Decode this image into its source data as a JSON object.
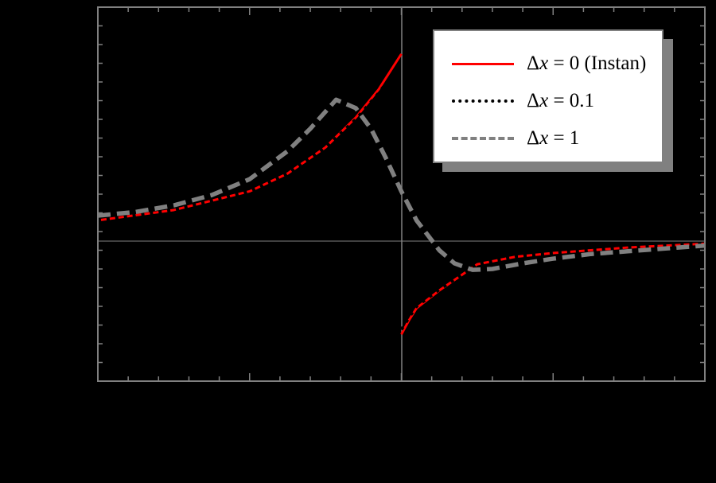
{
  "chart_data": {
    "type": "line",
    "title": "",
    "xlabel": "",
    "ylabel": "",
    "xlim": [
      -2,
      2
    ],
    "ylim": [
      -1.5,
      2.5
    ],
    "grid": false,
    "background": "#000000",
    "axis_color": "#808080",
    "x_major_ticks": [
      -2,
      -1,
      0,
      1,
      2
    ],
    "x_minor_tick_step": 0.2,
    "y_major_ticks": [
      -1,
      0,
      1,
      2
    ],
    "y_minor_tick_step": 0.2,
    "tick_labels_visible": false,
    "reference_lines": {
      "x": 0,
      "y": 0
    },
    "legend_position": "upper right",
    "series": [
      {
        "name": "Δx = 0 (Instan)",
        "color": "#ff0000",
        "style": "solid",
        "segments": [
          {
            "x": [
              -2,
              -1.5,
              -1,
              -0.75,
              -0.5,
              -0.3,
              -0.15,
              0
            ],
            "y": [
              0.22,
              0.33,
              0.53,
              0.72,
              1.0,
              1.32,
              1.62,
              2.0
            ]
          },
          {
            "x": [
              0,
              0.05,
              0.1,
              0.25,
              0.5,
              0.75,
              1,
              1.5,
              2
            ],
            "y": [
              -1.0,
              -0.85,
              -0.72,
              -0.53,
              -0.25,
              -0.17,
              -0.13,
              -0.07,
              -0.03
            ]
          }
        ]
      },
      {
        "name": "Δx = 0.1",
        "color": "#000000",
        "style": "dotted",
        "segments": [
          {
            "x": [
              -2,
              -1.5,
              -1,
              -0.75,
              -0.5,
              -0.3,
              -0.15,
              0
            ],
            "y": [
              0.22,
              0.33,
              0.53,
              0.72,
              1.0,
              1.3,
              1.58,
              1.9
            ]
          },
          {
            "x": [
              0,
              0.05,
              0.1,
              0.25,
              0.5,
              0.75,
              1,
              1.5,
              2
            ],
            "y": [
              -0.95,
              -0.82,
              -0.7,
              -0.52,
              -0.25,
              -0.17,
              -0.13,
              -0.07,
              -0.03
            ]
          }
        ]
      },
      {
        "name": "Δx = 1",
        "color": "#808080",
        "style": "dashed",
        "segments": [
          {
            "x": [
              -2,
              -1.75,
              -1.5,
              -1.25,
              -1,
              -0.75,
              -0.6,
              -0.43,
              -0.3,
              -0.2,
              -0.1,
              0,
              0.1,
              0.25,
              0.35,
              0.47,
              0.6,
              0.8,
              1,
              1.25,
              1.5,
              1.75,
              2
            ],
            "y": [
              0.27,
              0.31,
              0.38,
              0.49,
              0.66,
              0.96,
              1.2,
              1.51,
              1.42,
              1.2,
              0.88,
              0.53,
              0.22,
              -0.1,
              -0.24,
              -0.31,
              -0.3,
              -0.24,
              -0.19,
              -0.14,
              -0.11,
              -0.08,
              -0.05
            ]
          }
        ]
      }
    ]
  },
  "legend": {
    "items": [
      {
        "symbol": "Δ",
        "var": "x",
        "rest": " = 0 (Instan)",
        "color": "#ff0000",
        "style": "solid"
      },
      {
        "symbol": "Δ",
        "var": "x",
        "rest": " = 0.1",
        "color": "#000000",
        "style": "dotted"
      },
      {
        "symbol": "Δ",
        "var": "x",
        "rest": " = 1",
        "color": "#808080",
        "style": "dashed"
      }
    ]
  }
}
